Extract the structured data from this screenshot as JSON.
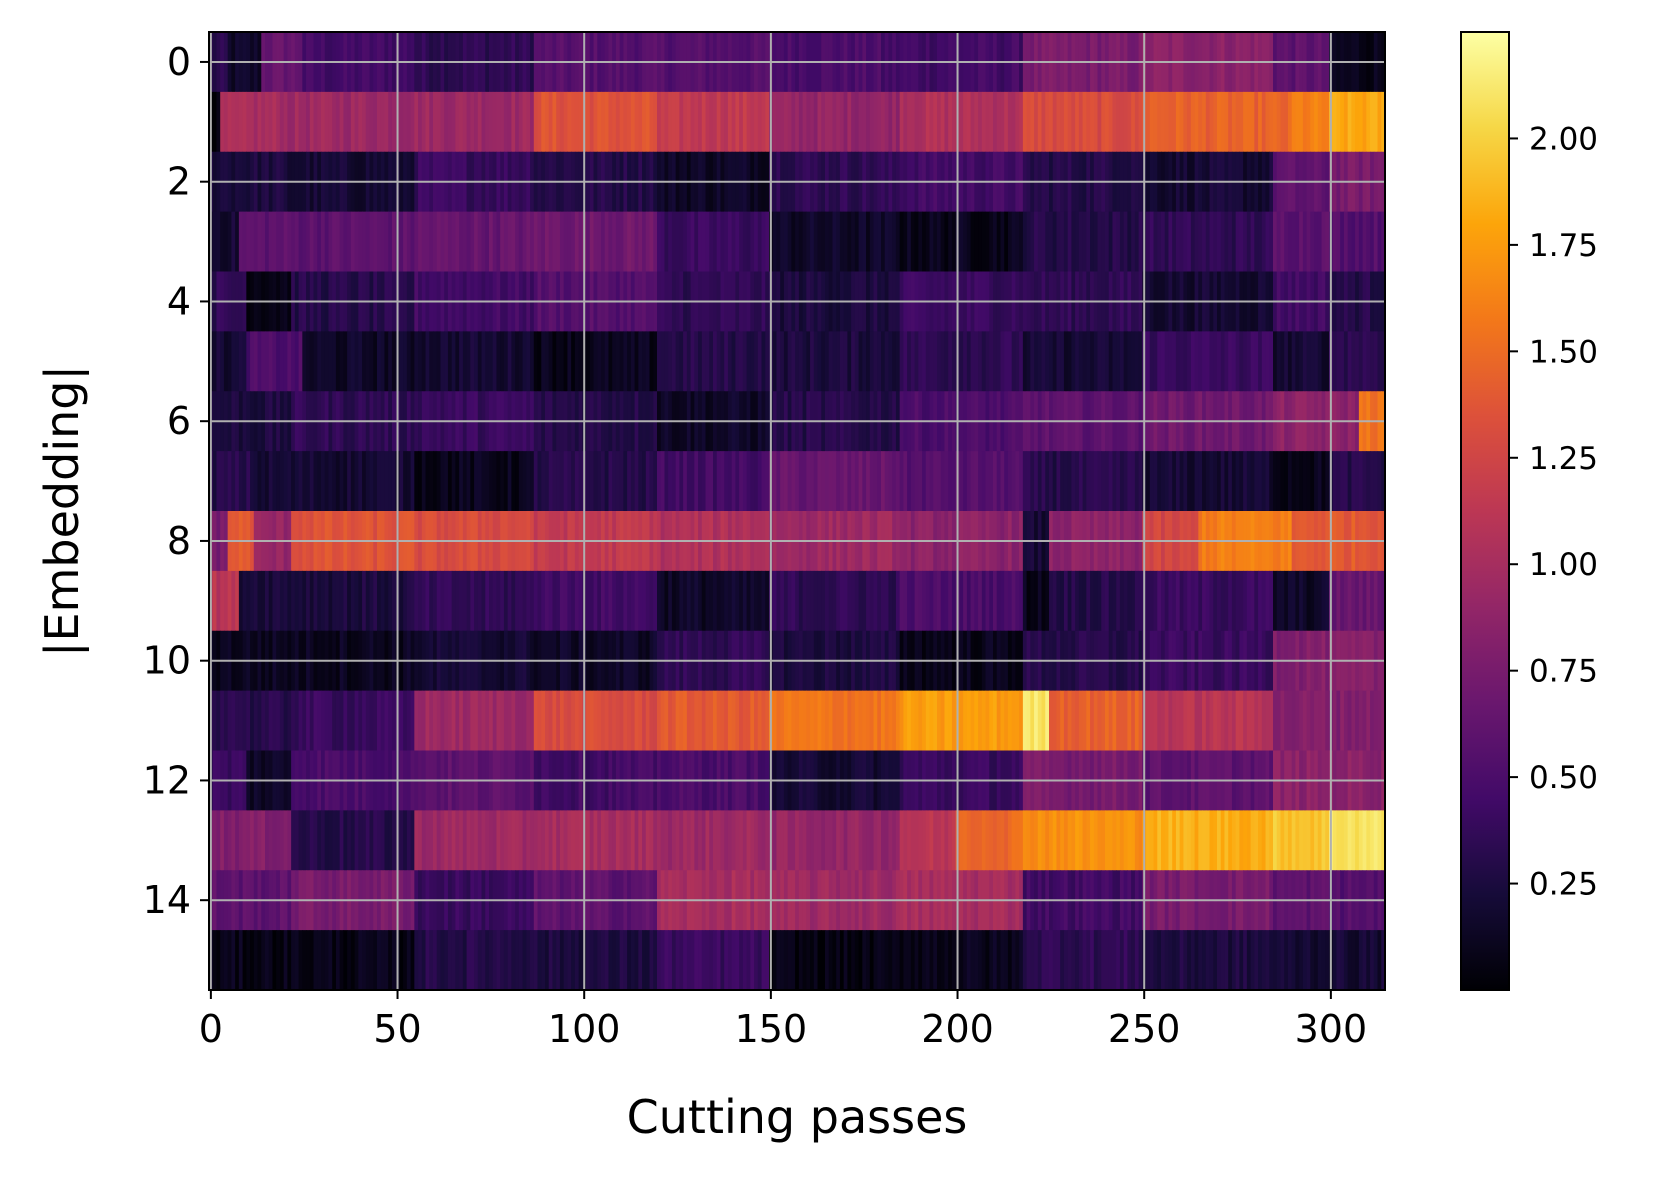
{
  "chart_data": {
    "type": "heatmap",
    "title": "",
    "xlabel": "Cutting passes",
    "ylabel": "|Embedding|",
    "n_rows": 16,
    "n_cols": 315,
    "xlim": [
      -0.5,
      314.5
    ],
    "ylim": [
      15.5,
      -0.5
    ],
    "x_ticks": [
      0,
      50,
      100,
      150,
      200,
      250,
      300
    ],
    "x_tick_labels": [
      "0",
      "50",
      "100",
      "150",
      "200",
      "250",
      "300"
    ],
    "y_ticks": [
      0,
      2,
      4,
      6,
      8,
      10,
      12,
      14
    ],
    "y_tick_labels": [
      "0",
      "2",
      "4",
      "6",
      "8",
      "10",
      "12",
      "14"
    ],
    "grid": true,
    "colormap": "inferno",
    "colorbar": {
      "range": [
        0.0,
        2.25
      ],
      "ticks": [
        0.25,
        0.5,
        0.75,
        1.0,
        1.25,
        1.5,
        1.75,
        2.0
      ],
      "tick_labels": [
        "0.25",
        "0.50",
        "0.75",
        "1.00",
        "1.25",
        "1.50",
        "1.75",
        "2.00"
      ]
    },
    "rows": [
      {
        "index": 0,
        "segments": [
          [
            0,
            5,
            0.3
          ],
          [
            5,
            14,
            0.15
          ],
          [
            14,
            25,
            0.65
          ],
          [
            25,
            55,
            0.45
          ],
          [
            55,
            87,
            0.35
          ],
          [
            87,
            110,
            0.55
          ],
          [
            110,
            150,
            0.55
          ],
          [
            150,
            180,
            0.5
          ],
          [
            180,
            218,
            0.45
          ],
          [
            218,
            250,
            0.75
          ],
          [
            250,
            285,
            0.85
          ],
          [
            285,
            300,
            0.6
          ],
          [
            300,
            315,
            0.1
          ]
        ]
      },
      {
        "index": 1,
        "segments": [
          [
            0,
            3,
            0.0
          ],
          [
            3,
            20,
            1.0
          ],
          [
            20,
            55,
            0.95
          ],
          [
            55,
            87,
            0.95
          ],
          [
            87,
            120,
            1.35
          ],
          [
            120,
            150,
            1.15
          ],
          [
            150,
            185,
            0.9
          ],
          [
            185,
            218,
            1.05
          ],
          [
            218,
            250,
            1.3
          ],
          [
            250,
            290,
            1.45
          ],
          [
            290,
            300,
            1.6
          ],
          [
            300,
            315,
            1.8
          ]
        ]
      },
      {
        "index": 2,
        "segments": [
          [
            0,
            20,
            0.25
          ],
          [
            20,
            55,
            0.2
          ],
          [
            55,
            87,
            0.4
          ],
          [
            87,
            120,
            0.3
          ],
          [
            120,
            150,
            0.15
          ],
          [
            150,
            185,
            0.35
          ],
          [
            185,
            218,
            0.45
          ],
          [
            218,
            250,
            0.3
          ],
          [
            250,
            285,
            0.2
          ],
          [
            285,
            300,
            0.6
          ],
          [
            300,
            315,
            0.75
          ]
        ]
      },
      {
        "index": 3,
        "segments": [
          [
            0,
            8,
            0.2
          ],
          [
            8,
            55,
            0.6
          ],
          [
            55,
            87,
            0.65
          ],
          [
            87,
            120,
            0.7
          ],
          [
            120,
            150,
            0.4
          ],
          [
            150,
            185,
            0.15
          ],
          [
            185,
            218,
            0.1
          ],
          [
            218,
            250,
            0.3
          ],
          [
            250,
            285,
            0.35
          ],
          [
            285,
            300,
            0.6
          ],
          [
            300,
            315,
            0.55
          ]
        ]
      },
      {
        "index": 4,
        "segments": [
          [
            0,
            10,
            0.35
          ],
          [
            10,
            22,
            0.1
          ],
          [
            22,
            55,
            0.3
          ],
          [
            55,
            87,
            0.45
          ],
          [
            87,
            120,
            0.55
          ],
          [
            120,
            150,
            0.35
          ],
          [
            150,
            185,
            0.25
          ],
          [
            185,
            218,
            0.4
          ],
          [
            218,
            250,
            0.35
          ],
          [
            250,
            285,
            0.2
          ],
          [
            285,
            300,
            0.45
          ],
          [
            300,
            315,
            0.3
          ]
        ]
      },
      {
        "index": 5,
        "segments": [
          [
            0,
            10,
            0.2
          ],
          [
            10,
            25,
            0.5
          ],
          [
            25,
            55,
            0.15
          ],
          [
            55,
            87,
            0.2
          ],
          [
            87,
            120,
            0.1
          ],
          [
            120,
            150,
            0.3
          ],
          [
            150,
            185,
            0.25
          ],
          [
            185,
            218,
            0.35
          ],
          [
            218,
            250,
            0.2
          ],
          [
            250,
            285,
            0.4
          ],
          [
            285,
            300,
            0.2
          ],
          [
            300,
            315,
            0.35
          ]
        ]
      },
      {
        "index": 6,
        "segments": [
          [
            0,
            22,
            0.25
          ],
          [
            22,
            55,
            0.35
          ],
          [
            55,
            87,
            0.4
          ],
          [
            87,
            120,
            0.3
          ],
          [
            120,
            150,
            0.15
          ],
          [
            150,
            185,
            0.3
          ],
          [
            185,
            218,
            0.5
          ],
          [
            218,
            250,
            0.6
          ],
          [
            250,
            285,
            0.7
          ],
          [
            285,
            308,
            0.85
          ],
          [
            308,
            315,
            1.55
          ]
        ]
      },
      {
        "index": 7,
        "segments": [
          [
            0,
            12,
            0.3
          ],
          [
            12,
            55,
            0.2
          ],
          [
            55,
            87,
            0.1
          ],
          [
            87,
            120,
            0.3
          ],
          [
            120,
            150,
            0.45
          ],
          [
            150,
            185,
            0.65
          ],
          [
            185,
            218,
            0.55
          ],
          [
            218,
            250,
            0.3
          ],
          [
            250,
            285,
            0.2
          ],
          [
            285,
            300,
            0.1
          ],
          [
            300,
            315,
            0.3
          ]
        ]
      },
      {
        "index": 8,
        "segments": [
          [
            0,
            5,
            0.75
          ],
          [
            5,
            12,
            1.4
          ],
          [
            12,
            22,
            0.9
          ],
          [
            22,
            55,
            1.35
          ],
          [
            55,
            87,
            1.3
          ],
          [
            87,
            120,
            1.15
          ],
          [
            120,
            150,
            1.05
          ],
          [
            150,
            185,
            0.95
          ],
          [
            185,
            218,
            0.85
          ],
          [
            218,
            225,
            0.2
          ],
          [
            225,
            250,
            0.85
          ],
          [
            250,
            265,
            1.25
          ],
          [
            265,
            290,
            1.6
          ],
          [
            290,
            315,
            1.4
          ]
        ]
      },
      {
        "index": 9,
        "segments": [
          [
            0,
            8,
            1.1
          ],
          [
            8,
            55,
            0.25
          ],
          [
            55,
            87,
            0.35
          ],
          [
            87,
            120,
            0.45
          ],
          [
            120,
            150,
            0.15
          ],
          [
            150,
            185,
            0.35
          ],
          [
            185,
            218,
            0.5
          ],
          [
            218,
            225,
            0.1
          ],
          [
            225,
            250,
            0.3
          ],
          [
            250,
            285,
            0.4
          ],
          [
            285,
            300,
            0.15
          ],
          [
            300,
            315,
            0.65
          ]
        ]
      },
      {
        "index": 10,
        "segments": [
          [
            0,
            55,
            0.12
          ],
          [
            55,
            87,
            0.2
          ],
          [
            87,
            120,
            0.15
          ],
          [
            120,
            150,
            0.35
          ],
          [
            150,
            185,
            0.25
          ],
          [
            185,
            218,
            0.1
          ],
          [
            218,
            250,
            0.3
          ],
          [
            250,
            285,
            0.4
          ],
          [
            285,
            315,
            0.8
          ]
        ]
      },
      {
        "index": 11,
        "segments": [
          [
            0,
            10,
            0.35
          ],
          [
            10,
            22,
            0.3
          ],
          [
            22,
            55,
            0.4
          ],
          [
            55,
            87,
            0.95
          ],
          [
            87,
            120,
            1.3
          ],
          [
            120,
            150,
            1.4
          ],
          [
            150,
            185,
            1.55
          ],
          [
            185,
            218,
            1.75
          ],
          [
            218,
            225,
            2.1
          ],
          [
            225,
            250,
            1.45
          ],
          [
            250,
            285,
            1.1
          ],
          [
            285,
            315,
            0.8
          ]
        ]
      },
      {
        "index": 12,
        "segments": [
          [
            0,
            10,
            0.4
          ],
          [
            10,
            22,
            0.15
          ],
          [
            22,
            55,
            0.5
          ],
          [
            55,
            87,
            0.6
          ],
          [
            87,
            120,
            0.45
          ],
          [
            120,
            150,
            0.5
          ],
          [
            150,
            185,
            0.2
          ],
          [
            185,
            218,
            0.4
          ],
          [
            218,
            250,
            0.75
          ],
          [
            250,
            285,
            0.6
          ],
          [
            285,
            315,
            0.85
          ]
        ]
      },
      {
        "index": 13,
        "segments": [
          [
            0,
            22,
            0.8
          ],
          [
            22,
            55,
            0.3
          ],
          [
            55,
            87,
            0.95
          ],
          [
            87,
            120,
            1.0
          ],
          [
            120,
            150,
            0.95
          ],
          [
            150,
            185,
            0.9
          ],
          [
            185,
            200,
            1.1
          ],
          [
            200,
            218,
            1.5
          ],
          [
            218,
            250,
            1.7
          ],
          [
            250,
            285,
            1.85
          ],
          [
            285,
            300,
            1.95
          ],
          [
            300,
            315,
            2.1
          ]
        ]
      },
      {
        "index": 14,
        "segments": [
          [
            0,
            22,
            0.6
          ],
          [
            22,
            55,
            0.75
          ],
          [
            55,
            87,
            0.4
          ],
          [
            87,
            120,
            0.6
          ],
          [
            120,
            150,
            1.0
          ],
          [
            150,
            185,
            0.95
          ],
          [
            185,
            218,
            1.0
          ],
          [
            218,
            250,
            0.45
          ],
          [
            250,
            285,
            0.75
          ],
          [
            285,
            300,
            0.6
          ],
          [
            300,
            315,
            0.55
          ]
        ]
      },
      {
        "index": 15,
        "segments": [
          [
            0,
            55,
            0.08
          ],
          [
            55,
            87,
            0.3
          ],
          [
            87,
            120,
            0.25
          ],
          [
            120,
            150,
            0.4
          ],
          [
            150,
            185,
            0.05
          ],
          [
            185,
            218,
            0.1
          ],
          [
            218,
            250,
            0.35
          ],
          [
            250,
            285,
            0.25
          ],
          [
            285,
            315,
            0.2
          ]
        ]
      }
    ]
  }
}
